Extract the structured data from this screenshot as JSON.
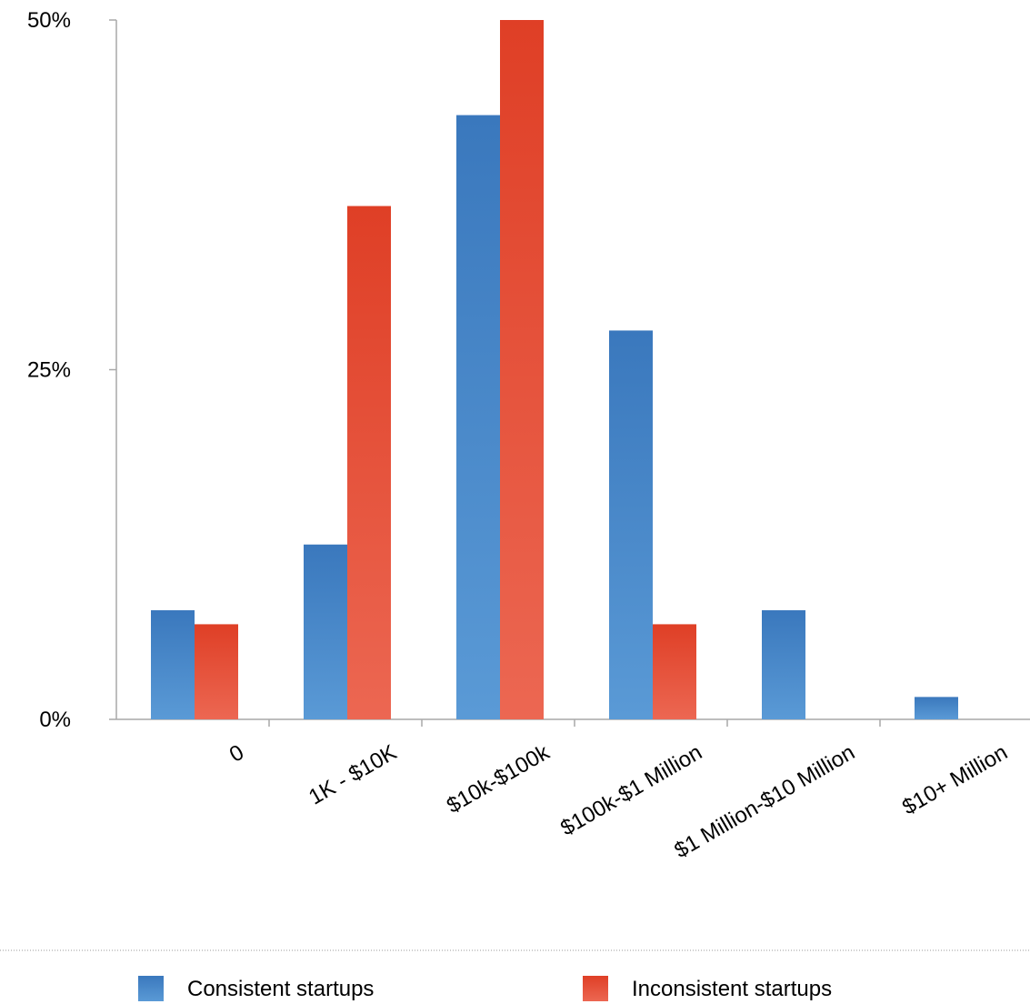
{
  "chart_data": {
    "type": "bar",
    "title": "",
    "xlabel": "",
    "ylabel": "",
    "categories": [
      "0",
      "1K - $10K",
      "$10k-$100k",
      "$100k-$1 Million",
      "$1 Million-$10 Million",
      "$10+ Million"
    ],
    "series": [
      {
        "name": "Consistent startups",
        "color": "#3e82c4",
        "values": [
          7.8,
          12.5,
          43.2,
          27.8,
          7.8,
          1.6
        ]
      },
      {
        "name": "Inconsistent startups",
        "color": "#e14d35",
        "values": [
          6.8,
          36.7,
          50.0,
          6.8,
          0,
          0
        ]
      }
    ],
    "ylim": [
      0,
      50
    ],
    "yticks": [
      {
        "value": 0,
        "label": "0%"
      },
      {
        "value": 25,
        "label": "25%"
      },
      {
        "value": 50,
        "label": "50%"
      }
    ],
    "grid": false,
    "legend_position": "bottom"
  }
}
